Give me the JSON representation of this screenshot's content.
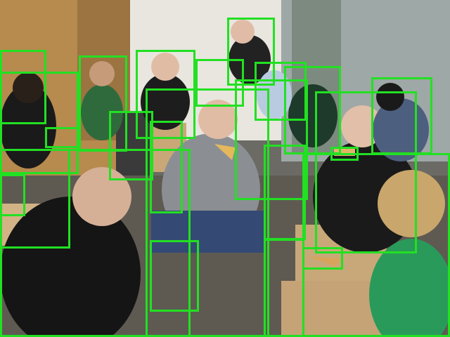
{
  "image": {
    "description_hidden": true
  },
  "annotation": {
    "box_color": "#22e022",
    "box_count": 28,
    "box_label": "person"
  }
}
